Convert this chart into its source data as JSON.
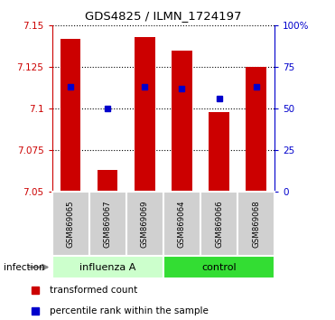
{
  "title": "GDS4825 / ILMN_1724197",
  "samples": [
    "GSM869065",
    "GSM869067",
    "GSM869069",
    "GSM869064",
    "GSM869066",
    "GSM869068"
  ],
  "group_labels": [
    "influenza A",
    "control"
  ],
  "bar_bottoms": [
    7.05,
    7.05,
    7.05,
    7.05,
    7.05,
    7.05
  ],
  "bar_tops": [
    7.142,
    7.063,
    7.143,
    7.135,
    7.098,
    7.125
  ],
  "bar_color": "#cc0000",
  "dot_values": [
    7.113,
    7.1,
    7.113,
    7.112,
    7.106,
    7.113
  ],
  "dot_color": "#0000cc",
  "ylim_left": [
    7.05,
    7.15
  ],
  "yticks_left": [
    7.05,
    7.075,
    7.1,
    7.125,
    7.15
  ],
  "ylim_right": [
    0,
    100
  ],
  "ytick_labels_right": [
    "0",
    "25",
    "50",
    "75",
    "100%"
  ],
  "left_tick_color": "#cc0000",
  "right_tick_color": "#0000cc",
  "infection_label": "infection",
  "legend_red_label": "transformed count",
  "legend_blue_label": "percentile rank within the sample",
  "bar_width": 0.55,
  "sample_bg_color": "#d0d0d0",
  "influenza_bg": "#ccffcc",
  "control_bg": "#33dd33"
}
